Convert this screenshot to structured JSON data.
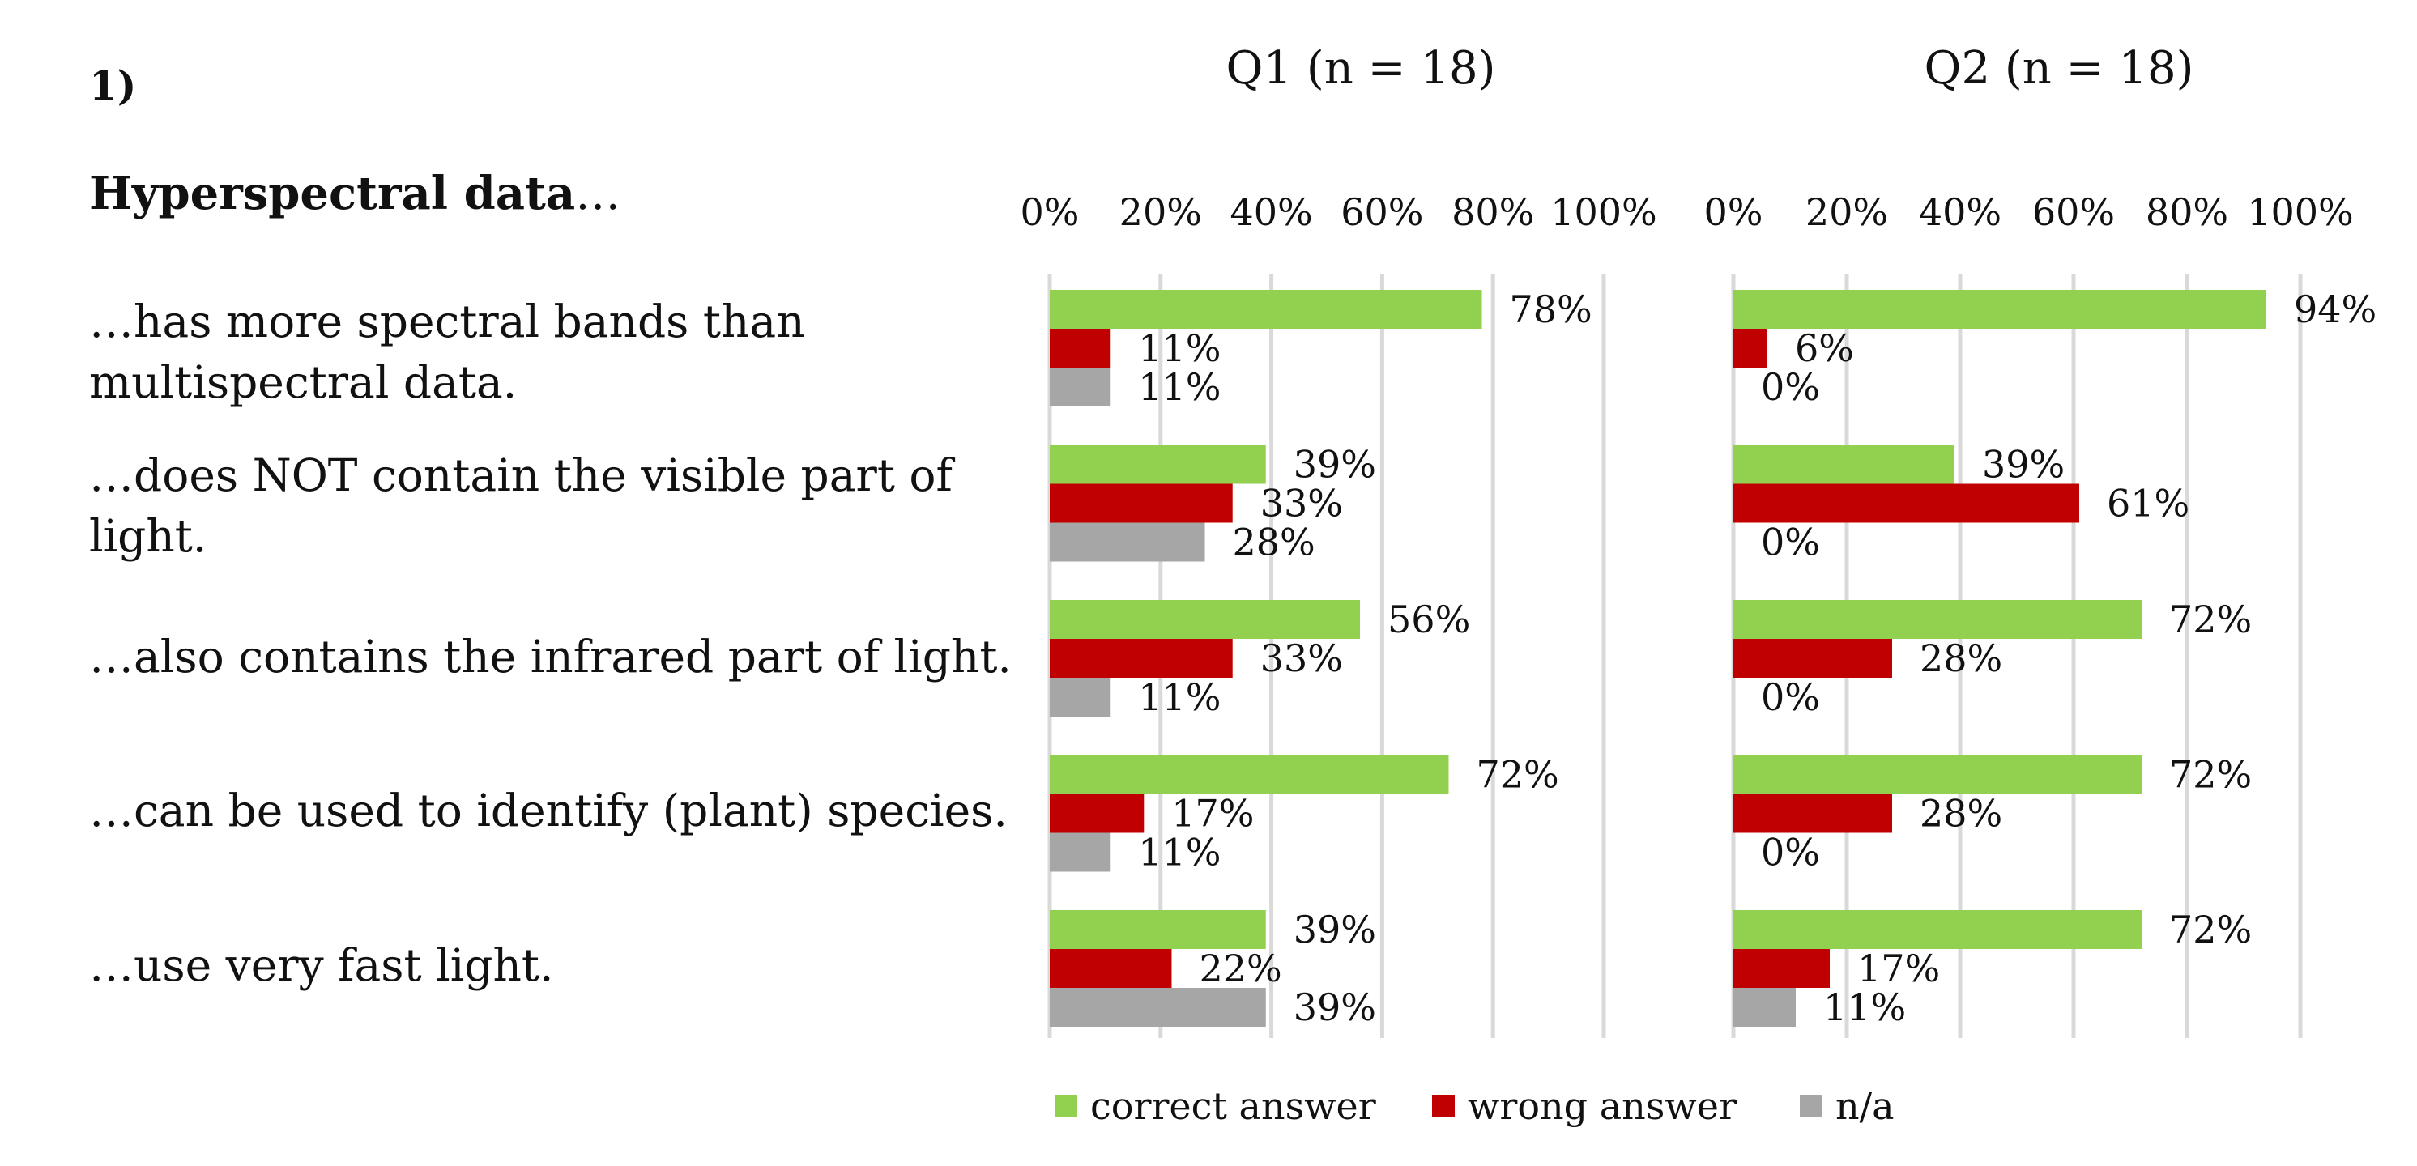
{
  "figure": {
    "section_number": "1)",
    "heading_bold": "Hyperspectral data",
    "heading_rest": "…",
    "statements": [
      "…has more spectral bands than multispectral data.",
      "…does NOT contain the visible part of light.",
      "…also contains the infrared part of light.",
      "…can be used to identify (plant) species.",
      "…use very fast light."
    ]
  },
  "legend": {
    "correct": "correct answer",
    "wrong": "wrong answer",
    "na": "n/a"
  },
  "colors": {
    "correct": "#92d050",
    "wrong": "#c00000",
    "na": "#a6a6a6",
    "grid": "#d9d9d9"
  },
  "chart_data": [
    {
      "type": "bar",
      "orientation": "horizontal",
      "title": "Q1 (n = 18)",
      "xlim": [
        0,
        100
      ],
      "xticks": [
        "0%",
        "20%",
        "40%",
        "60%",
        "80%",
        "100%"
      ],
      "categories": [
        "…has more spectral bands than multispectral data.",
        "…does NOT contain the visible part of light.",
        "…also contains the infrared part of light.",
        "…can be used to identify (plant) species.",
        "…use very fast light."
      ],
      "series": [
        {
          "name": "correct answer",
          "key": "correct",
          "values": [
            78,
            39,
            56,
            72,
            39
          ],
          "labels": [
            "78%",
            "39%",
            "56%",
            "72%",
            "39%"
          ]
        },
        {
          "name": "wrong answer",
          "key": "wrong",
          "values": [
            11,
            33,
            33,
            17,
            22
          ],
          "labels": [
            "11%",
            "33%",
            "33%",
            "17%",
            "22%"
          ]
        },
        {
          "name": "n/a",
          "key": "na",
          "values": [
            11,
            28,
            11,
            11,
            39
          ],
          "labels": [
            "11%",
            "28%",
            "11%",
            "11%",
            "39%"
          ]
        }
      ],
      "legend_position": "bottom"
    },
    {
      "type": "bar",
      "orientation": "horizontal",
      "title": "Q2 (n = 18)",
      "xlim": [
        0,
        100
      ],
      "xticks": [
        "0%",
        "20%",
        "40%",
        "60%",
        "80%",
        "100%"
      ],
      "categories": [
        "…has more spectral bands than multispectral data.",
        "…does NOT contain the visible part of light.",
        "…also contains the infrared part of light.",
        "…can be used to identify (plant) species.",
        "…use very fast light."
      ],
      "series": [
        {
          "name": "correct answer",
          "key": "correct",
          "values": [
            94,
            39,
            72,
            72,
            72
          ],
          "labels": [
            "94%",
            "39%",
            "72%",
            "72%",
            "72%"
          ]
        },
        {
          "name": "wrong answer",
          "key": "wrong",
          "values": [
            6,
            61,
            28,
            28,
            17
          ],
          "labels": [
            "6%",
            "61%",
            "28%",
            "28%",
            "17%"
          ]
        },
        {
          "name": "n/a",
          "key": "na",
          "values": [
            0,
            0,
            0,
            0,
            11
          ],
          "labels": [
            "0%",
            "0%",
            "0%",
            "0%",
            "11%"
          ]
        }
      ],
      "legend_position": "bottom"
    }
  ]
}
